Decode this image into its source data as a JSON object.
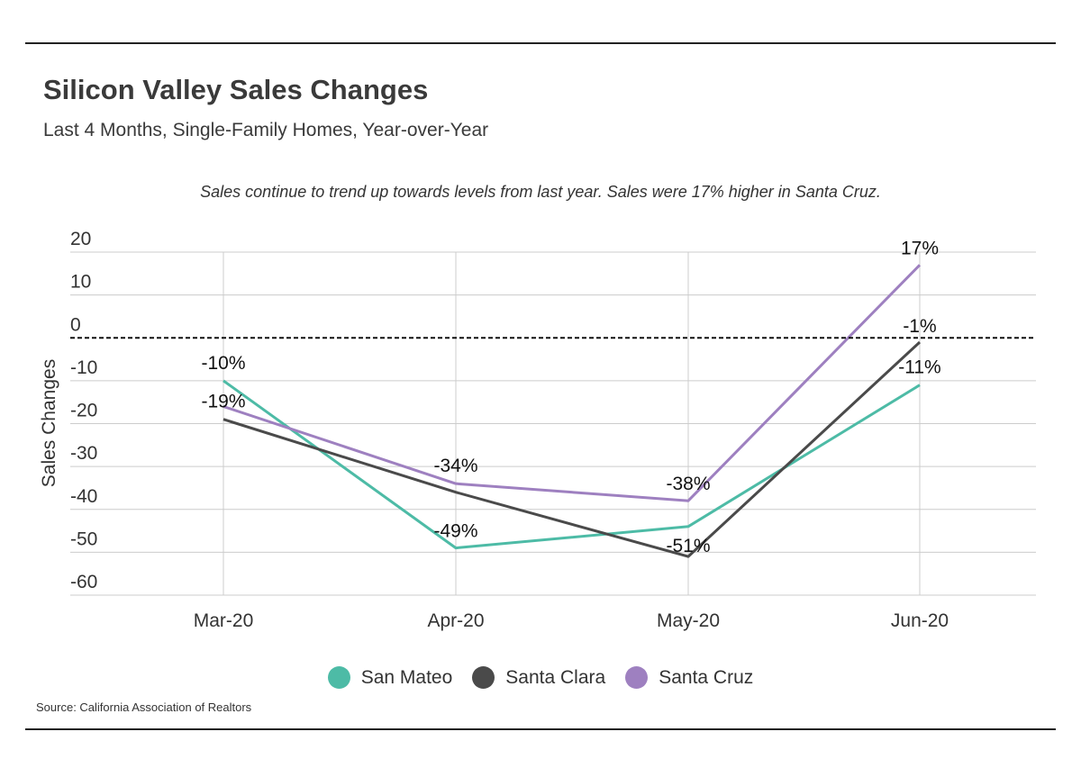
{
  "header": {
    "title": "Silicon Valley Sales Changes",
    "subtitle": "Last 4 Months, Single-Family Homes, Year-over-Year"
  },
  "annotation": "Sales continue to trend up towards levels from last year. Sales were 17% higher in Santa Cruz.",
  "source": "Source:  California Association of Realtors",
  "chart_data": {
    "type": "line",
    "title": "",
    "xlabel": "",
    "ylabel": "Sales Changes",
    "categories": [
      "Mar-20",
      "Apr-20",
      "May-20",
      "Jun-20"
    ],
    "ylim": [
      -60,
      20
    ],
    "yticks": [
      20,
      10,
      0,
      -10,
      -20,
      -30,
      -40,
      -50,
      -60
    ],
    "grid": true,
    "reference_line": 0,
    "legend_position": "bottom",
    "series": [
      {
        "name": "San Mateo",
        "color": "#4dbba6",
        "values": [
          -10,
          -49,
          -44,
          -11
        ],
        "labels": [
          "-10%",
          "-49%",
          null,
          "-11%"
        ]
      },
      {
        "name": "Santa Clara",
        "color": "#4a4a4a",
        "values": [
          -19,
          -36,
          -51,
          -1
        ],
        "labels": [
          "-19%",
          null,
          "-51%",
          "-1%"
        ]
      },
      {
        "name": "Santa Cruz",
        "color": "#9e80c0",
        "values": [
          -16,
          -34,
          -38,
          17
        ],
        "labels": [
          null,
          "-34%",
          "-38%",
          "17%"
        ]
      }
    ]
  }
}
